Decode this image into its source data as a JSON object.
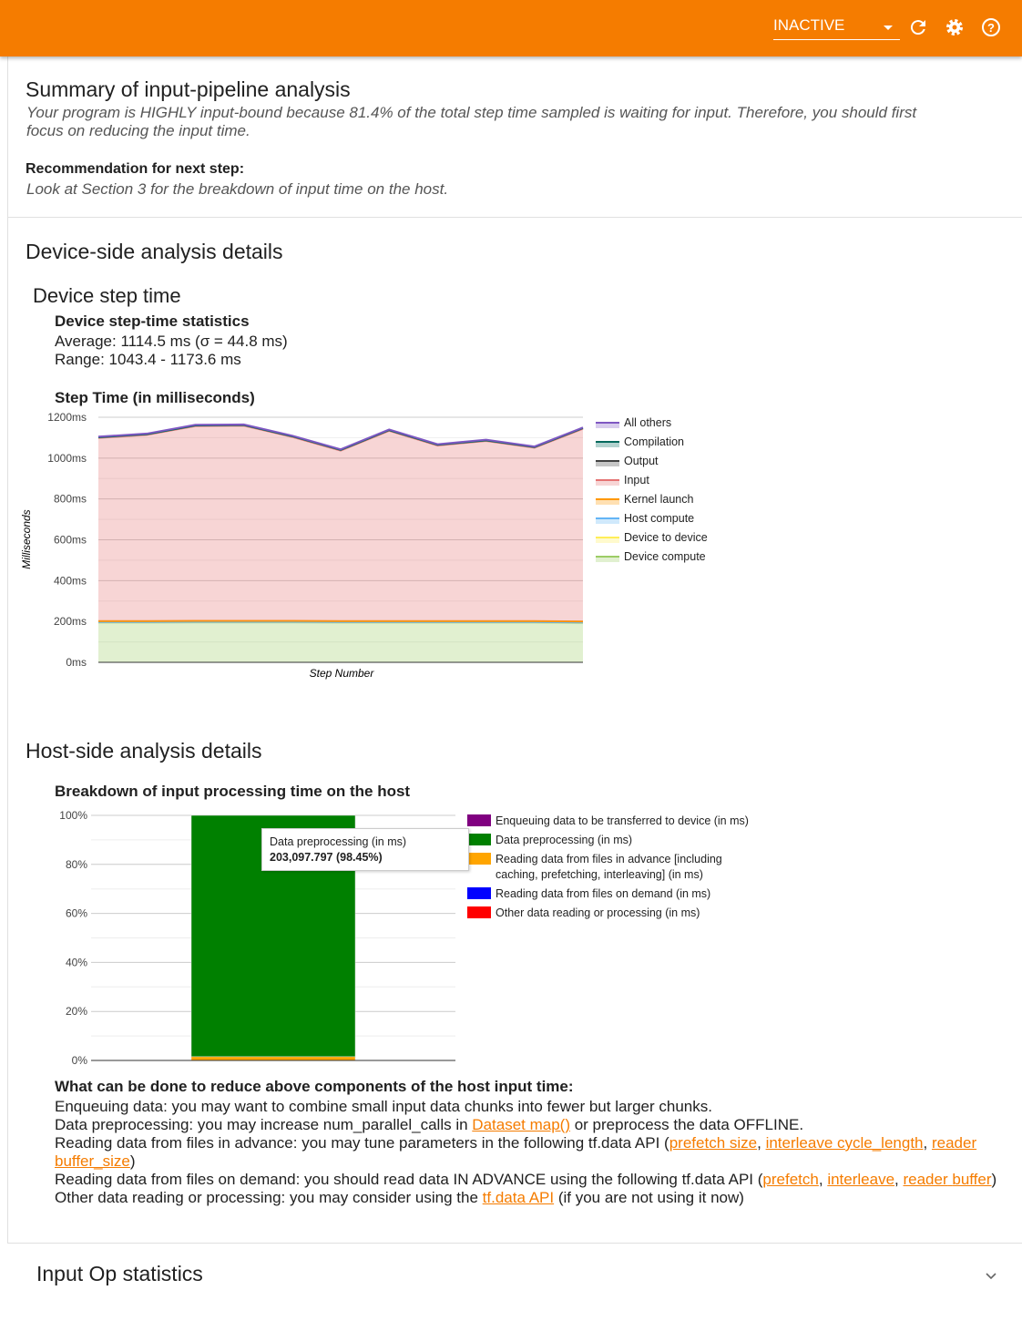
{
  "topbar": {
    "status_select": "INACTIVE",
    "icons": [
      "refresh-icon",
      "settings-icon",
      "help-icon"
    ],
    "color": "#f57c00"
  },
  "summary": {
    "title": "Summary of input-pipeline analysis",
    "text1": "Your program is HIGHLY input-bound because 81.4% of the total step time sampled is waiting for input. Therefore, you should first",
    "text2": "focus on reducing the input time.",
    "rec_label": "Recommendation for next step:",
    "rec_text": "Look at Section 3 for the breakdown of input time on the host."
  },
  "device": {
    "title": "Device-side analysis details",
    "subtitle": "Device step time",
    "stats_title": "Device step-time statistics",
    "average": "Average: 1114.5 ms (σ = 44.8 ms)",
    "range": "Range: 1043.4 - 1173.6 ms",
    "chart_title": "Step Time (in milliseconds)"
  },
  "host": {
    "title": "Host-side analysis details",
    "chart_title": "Breakdown of input processing time on the host",
    "tooltip_label": "Data preprocessing (in ms)",
    "tooltip_value": "203,097.797 (98.45%)",
    "advice_title": "What can be done to reduce above components of the host input time:",
    "advice": {
      "l1": "Enqueuing data: you may want to combine small input data chunks into fewer but larger chunks.",
      "l2a": "Data preprocessing: you may increase num_parallel_calls in ",
      "l2link": "Dataset map()",
      "l2b": " or preprocess the data OFFLINE.",
      "l3a": "Reading data from files in advance: you may tune parameters in the following tf.data API (",
      "l3l1": "prefetch size",
      "l3l2": "interleave cycle_length",
      "l3l3": "reader buffer_size",
      "l4a": "Reading data from files on demand: you should read data IN ADVANCE using the following tf.data API (",
      "l4l1": "prefetch",
      "l4l2": "interleave",
      "l4l3a": "reader",
      "l4l3b": "buffer",
      "l5a": "Other data reading or processing: you may consider using the ",
      "l5link": "tf.data API",
      "l5b": " (if you are not using it now)"
    }
  },
  "input_op": {
    "title": "Input Op statistics"
  },
  "chart_data": [
    {
      "type": "area",
      "stacked": true,
      "title": "Step Time (in milliseconds)",
      "xlabel": "Step Number",
      "ylabel": "Milliseconds",
      "ylim": [
        0,
        1200
      ],
      "yticks": [
        "0ms",
        "200ms",
        "400ms",
        "600ms",
        "800ms",
        "1000ms",
        "1200ms"
      ],
      "grid": true,
      "legend": "right",
      "series": [
        {
          "name": "Device compute",
          "color": "#9ccc65",
          "values": [
            195,
            195,
            196,
            196,
            196,
            195,
            195,
            195,
            195,
            195,
            193
          ]
        },
        {
          "name": "Device to device",
          "color": "#ffee58",
          "values": [
            1,
            1,
            1,
            1,
            1,
            1,
            1,
            1,
            1,
            1,
            1
          ]
        },
        {
          "name": "Host compute",
          "color": "#64b5f6",
          "values": [
            1,
            1,
            1,
            1,
            1,
            1,
            1,
            1,
            1,
            1,
            1
          ]
        },
        {
          "name": "Kernel launch",
          "color": "#ff9800",
          "values": [
            5,
            5,
            5,
            5,
            5,
            5,
            5,
            5,
            5,
            5,
            5
          ]
        },
        {
          "name": "Input",
          "color": "#e57373",
          "values": [
            897,
            912,
            954,
            956,
            901,
            835,
            932,
            860,
            882,
            849,
            944
          ]
        },
        {
          "name": "Output",
          "color": "#424242",
          "values": [
            0,
            0,
            0,
            0,
            0,
            0,
            0,
            0,
            0,
            0,
            0
          ]
        },
        {
          "name": "Compilation",
          "color": "#00695c",
          "values": [
            3,
            3,
            3,
            3,
            3,
            3,
            3,
            3,
            3,
            3,
            3
          ]
        },
        {
          "name": "All others",
          "color": "#7e57c2",
          "values": [
            3,
            3,
            3,
            3,
            3,
            3,
            3,
            3,
            3,
            3,
            3
          ]
        }
      ]
    },
    {
      "type": "bar",
      "stacked": true,
      "percent": true,
      "ylim": [
        0,
        100
      ],
      "yticks": [
        "0%",
        "20%",
        "40%",
        "60%",
        "80%",
        "100%"
      ],
      "legend": "right",
      "series": [
        {
          "name": "Enqueuing data to be transferred to device (in ms)",
          "color": "#800080",
          "value": 0
        },
        {
          "name": "Data preprocessing (in ms)",
          "color": "#008000",
          "value": 98.45
        },
        {
          "name": "Reading data from files in advance [including caching, prefetching, interleaving] (in ms)",
          "color": "#ffa500",
          "value": 1.55
        },
        {
          "name": "Reading data from files on demand (in ms)",
          "color": "#0000ff",
          "value": 0
        },
        {
          "name": "Other data reading or processing (in ms)",
          "color": "#ff0000",
          "value": 0
        }
      ]
    }
  ]
}
